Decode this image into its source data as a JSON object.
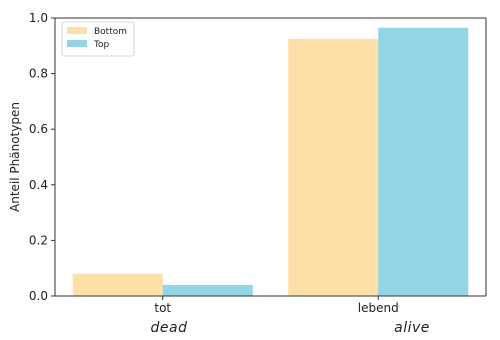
{
  "chart_data": {
    "type": "bar",
    "categories": [
      "tot",
      "lebend"
    ],
    "series": [
      {
        "name": "Bottom",
        "values": [
          0.08,
          0.925
        ]
      },
      {
        "name": "Top",
        "values": [
          0.04,
          0.965
        ]
      }
    ],
    "title": "",
    "xlabel": "",
    "ylabel": "Anteil Phänotypen",
    "ylim": [
      0,
      1.0
    ],
    "yticks": [
      "0.0",
      "0.2",
      "0.4",
      "0.6",
      "0.8",
      "1.0"
    ],
    "colors": {
      "Bottom": "#fddfa8",
      "Top": "#92d5e4"
    },
    "legend_position": "top-left",
    "grid": false
  },
  "captions": [
    "dead",
    "alive"
  ]
}
